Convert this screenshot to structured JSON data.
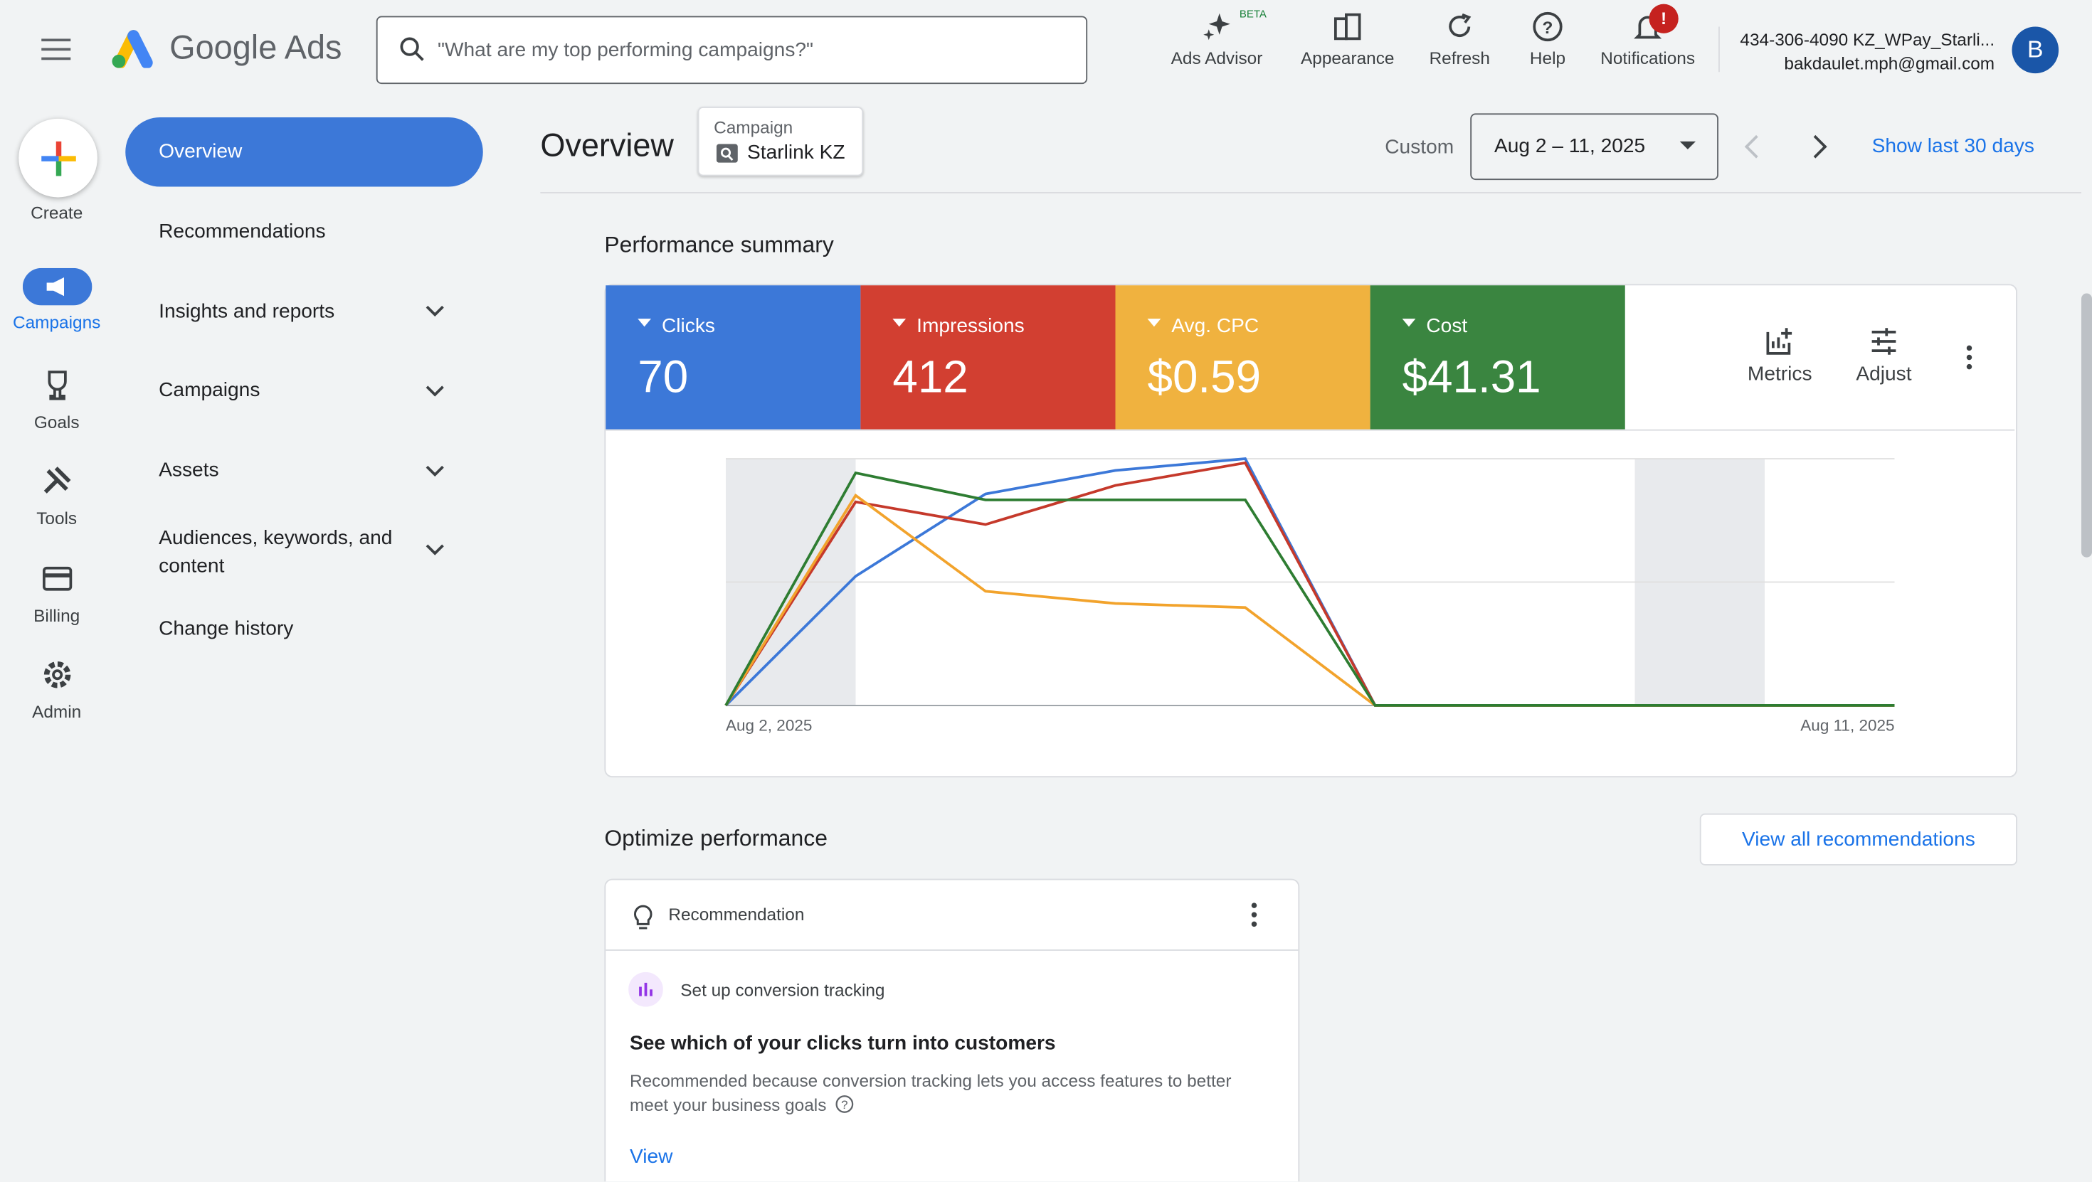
{
  "header": {
    "product": "Google Ads",
    "search_placeholder": "\"What are my top performing campaigns?\"",
    "actions": [
      "Ads Advisor",
      "Appearance",
      "Refresh",
      "Help",
      "Notifications"
    ],
    "beta_badge": "BETA",
    "notification_badge": "!",
    "account_name": "434-306-4090 KZ_WPay_Starli...",
    "account_email": "bakdaulet.mph@gmail.com",
    "avatar": "B"
  },
  "rail": [
    "Create",
    "Campaigns",
    "Goals",
    "Tools",
    "Billing",
    "Admin"
  ],
  "nav": [
    "Overview",
    "Recommendations",
    "Insights and reports",
    "Campaigns",
    "Assets",
    "Audiences, keywords, and content",
    "Change history"
  ],
  "toolbar": {
    "title": "Overview",
    "filter_label": "Campaign",
    "filter_value": "Starlink KZ",
    "range_type": "Custom",
    "date_range": "Aug 2 – 11, 2025",
    "show_last": "Show last 30 days"
  },
  "summary": {
    "title": "Performance summary",
    "card_values": [
      "70",
      "412",
      "$0.59",
      "$41.31"
    ],
    "buttons": [
      "Metrics",
      "Adjust"
    ]
  },
  "chart_data": {
    "type": "line",
    "x": [
      "Aug 2, 2025",
      null,
      null,
      null,
      null,
      null,
      null,
      null,
      null,
      "Aug 11, 2025"
    ],
    "series": [
      {
        "name": "Clicks",
        "color": "#3c78d8",
        "card_color": "#3c78d8",
        "ylim": [
          0,
          21
        ],
        "values": [
          0,
          11,
          18,
          20,
          21,
          0,
          0,
          0,
          0,
          0
        ]
      },
      {
        "name": "Impressions",
        "color": "#c5392b",
        "card_color": "#d23f31",
        "ylim": [
          0,
          120
        ],
        "values": [
          0,
          99,
          88,
          107,
          118,
          0,
          0,
          0,
          0,
          0
        ]
      },
      {
        "name": "Avg. CPC",
        "color": "#f2a32c",
        "card_color": "#f0b23f",
        "ylim": [
          0,
          1.21
        ],
        "values": [
          0,
          1.03,
          0.56,
          0.5,
          0.48,
          0,
          0,
          0,
          0,
          0
        ]
      },
      {
        "name": "Cost",
        "color": "#2e7d32",
        "card_color": "#3a8540",
        "ylim": [
          0,
          12
        ],
        "values": [
          0,
          11.31,
          10,
          10,
          10,
          0,
          0,
          0,
          0,
          0
        ]
      }
    ]
  },
  "optimize": {
    "title": "Optimize performance",
    "view_all": "View all recommendations",
    "card_label": "Recommendation",
    "topic": "Set up conversion tracking",
    "heading": "See which of your clicks turn into customers",
    "description_1": "Recommended because conversion tracking lets you access features to better",
    "description_2": "meet your business goals",
    "action": "View"
  }
}
